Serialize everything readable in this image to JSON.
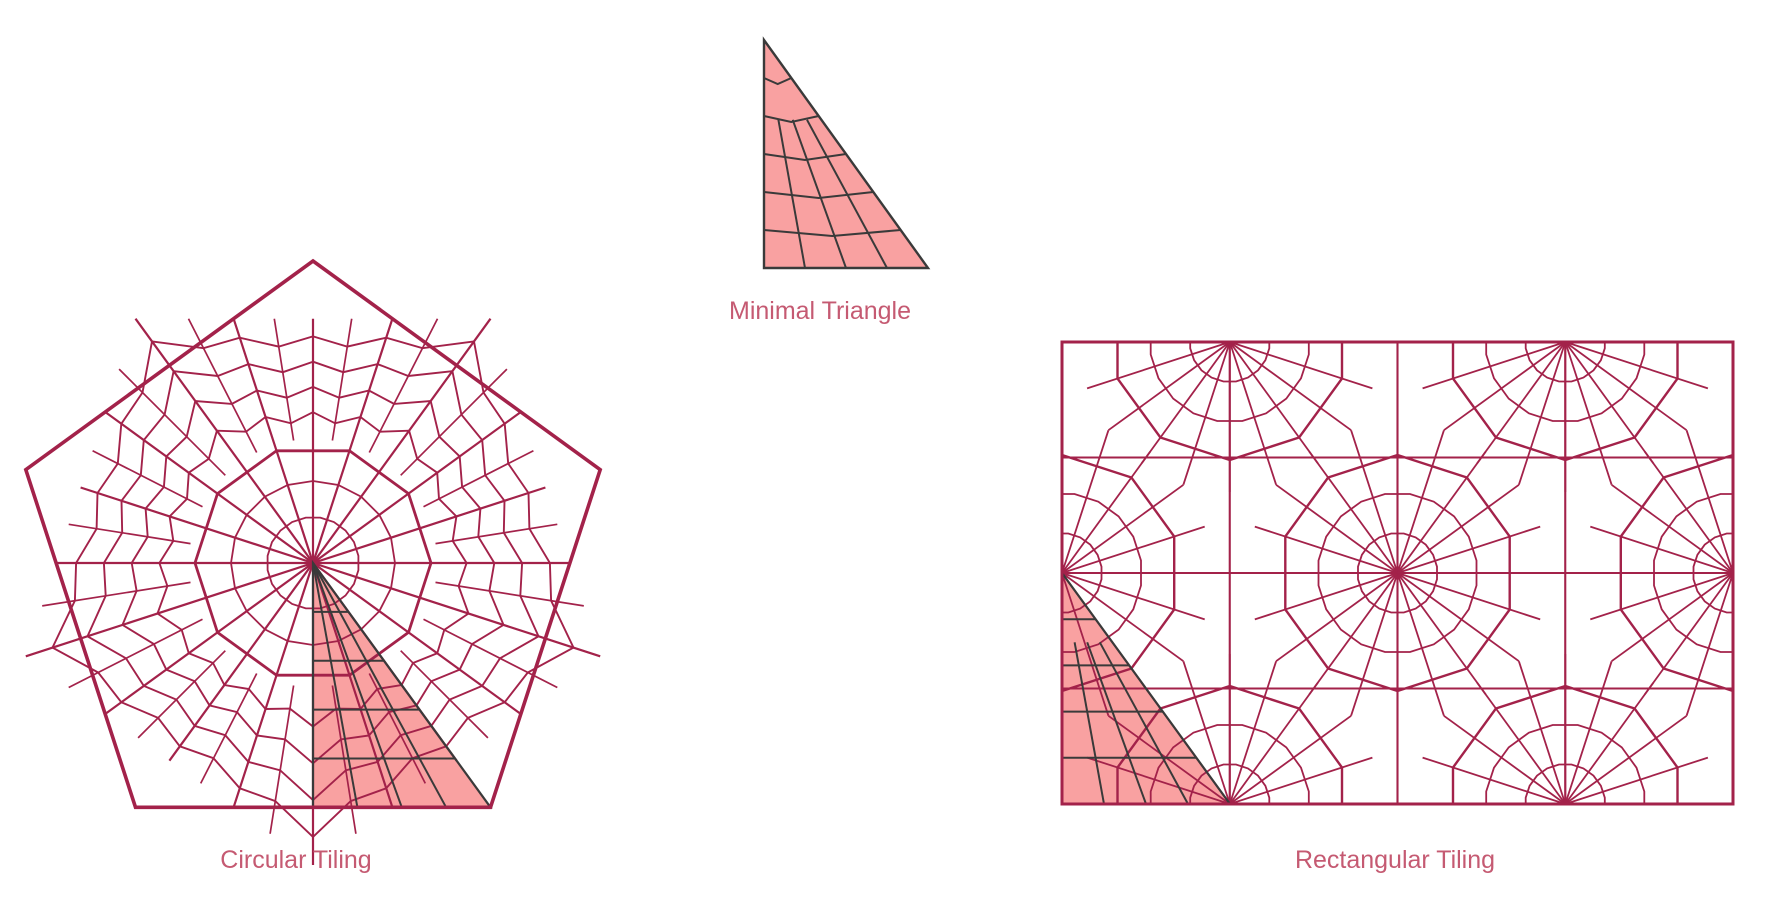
{
  "captions": {
    "circular": "Circular Tiling",
    "minimal": "Minimal Triangle",
    "rectangular": "Rectangular Tiling"
  },
  "colors": {
    "line": "#a3224a",
    "fill": "#f9a1a1",
    "triangle_line": "#3a3a3a",
    "caption": "#c55a72",
    "background": "#ffffff"
  }
}
